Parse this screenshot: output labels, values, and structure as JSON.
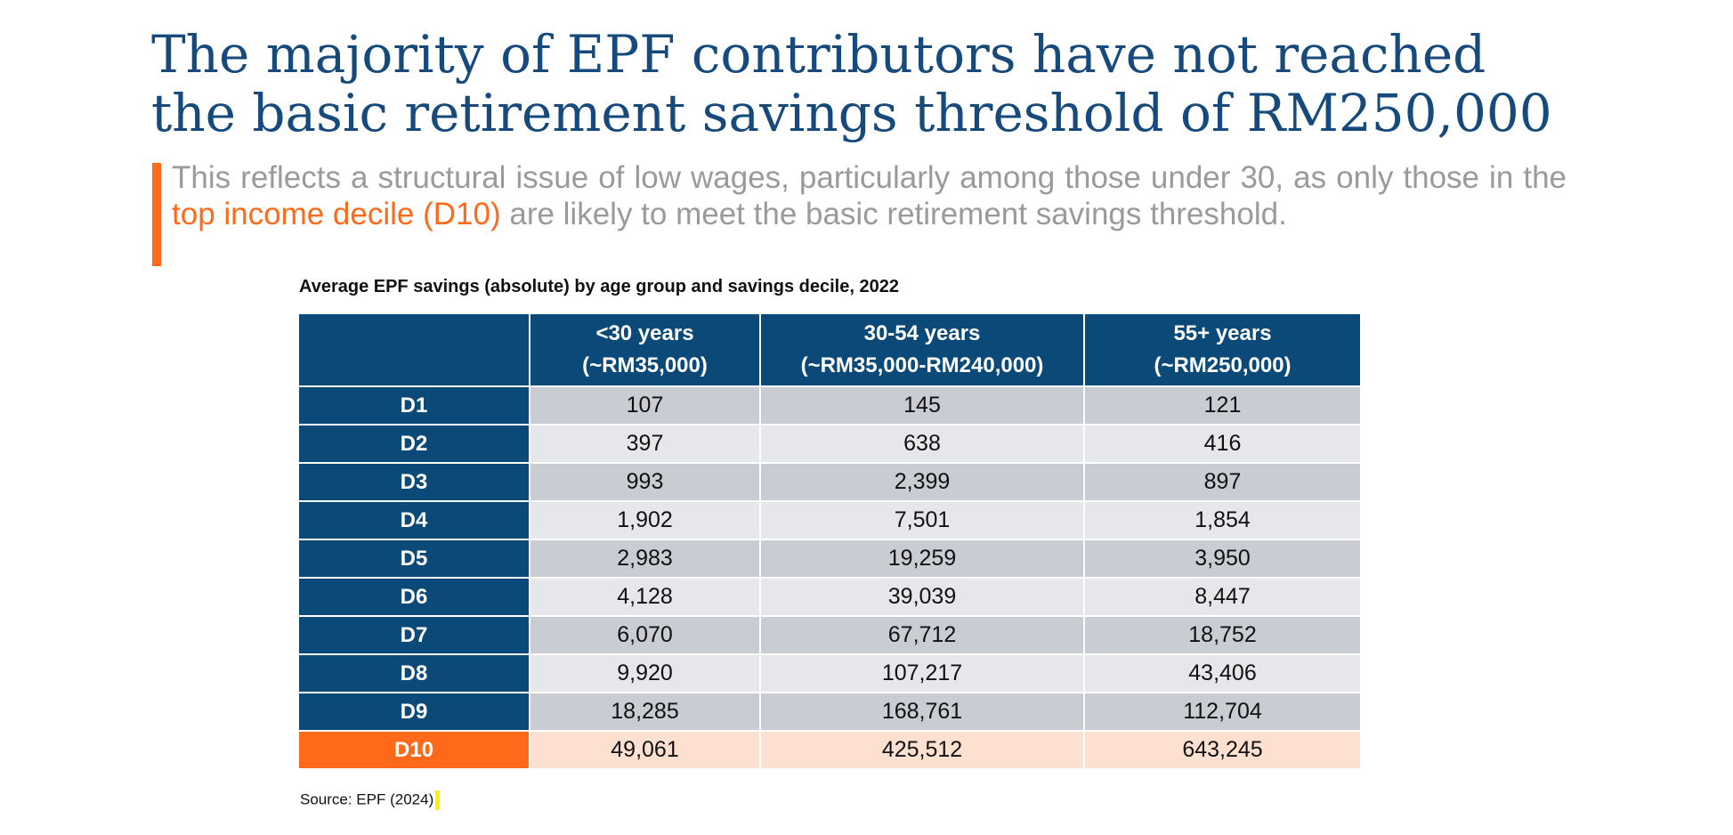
{
  "title": "The majority of EPF contributors have not reached the basic retirement savings threshold of RM250,000",
  "subtitle": {
    "part1": "This reflects a structural issue of low wages, particularly among those under 30, as only those in the ",
    "highlight": "top income decile (D10)",
    "part2": " are likely to meet the basic retirement savings threshold."
  },
  "colors": {
    "title": "#174a7c",
    "accent": "#ff6a1a",
    "header_bg": "#0b4a78",
    "row_shade_a": "#c9ccd3",
    "row_shade_b": "#e6e7ea",
    "highlight_row_bg": "#fde0d0"
  },
  "table": {
    "title": "Average EPF savings (absolute) by age group and savings decile, 2022",
    "columns": [
      {
        "line1": "<30 years",
        "line2": "(~RM35,000)"
      },
      {
        "line1": "30-54 years",
        "line2": "(~RM35,000-RM240,000)"
      },
      {
        "line1": "55+ years",
        "line2": "(~RM250,000)"
      }
    ],
    "rows": [
      {
        "label": "D1",
        "values": [
          "107",
          "145",
          "121"
        ]
      },
      {
        "label": "D2",
        "values": [
          "397",
          "638",
          "416"
        ]
      },
      {
        "label": "D3",
        "values": [
          "993",
          "2,399",
          "897"
        ]
      },
      {
        "label": "D4",
        "values": [
          "1,902",
          "7,501",
          "1,854"
        ]
      },
      {
        "label": "D5",
        "values": [
          "2,983",
          "19,259",
          "3,950"
        ]
      },
      {
        "label": "D6",
        "values": [
          "4,128",
          "39,039",
          "8,447"
        ]
      },
      {
        "label": "D7",
        "values": [
          "6,070",
          "67,712",
          "18,752"
        ]
      },
      {
        "label": "D8",
        "values": [
          "9,920",
          "107,217",
          "43,406"
        ]
      },
      {
        "label": "D9",
        "values": [
          "18,285",
          "168,761",
          "112,704"
        ]
      },
      {
        "label": "D10",
        "values": [
          "49,061",
          "425,512",
          "643,245"
        ]
      }
    ]
  },
  "source": "Source: EPF (2024)"
}
